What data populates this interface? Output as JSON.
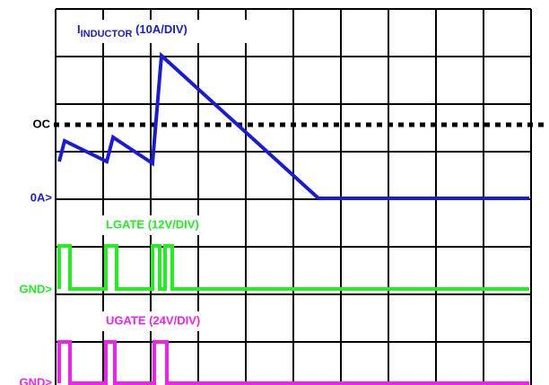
{
  "labels": {
    "inductor_main": "I",
    "inductor_sub": "INDUCTOR",
    "inductor_scale": " (10A/DIV)",
    "oc": "OC",
    "zero_amp": "0A>",
    "lgate": "LGATE (12V/DIV)",
    "lgate_gnd": "GND>",
    "ugate": "UGATE (24V/DIV)",
    "ugate_gnd": "GND>"
  }
}
